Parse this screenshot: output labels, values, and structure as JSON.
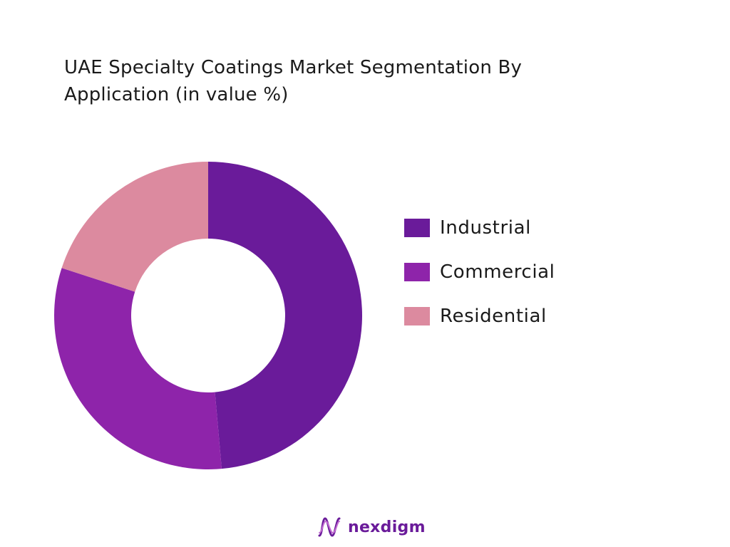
{
  "chart_data": {
    "type": "pie",
    "variant": "donut",
    "title": "UAE Specialty Coatings Market Segmentation By Application (in value %)",
    "categories": [
      "Industrial",
      "Commercial",
      "Residential"
    ],
    "values": [
      48.6,
      31.4,
      20.0
    ],
    "colors": [
      "#6a1b9a",
      "#8e24aa",
      "#dc8a9f"
    ],
    "legend": "right"
  },
  "brand": {
    "name": "nexdigm",
    "logo_icon": "nexdigm-wave-icon"
  }
}
